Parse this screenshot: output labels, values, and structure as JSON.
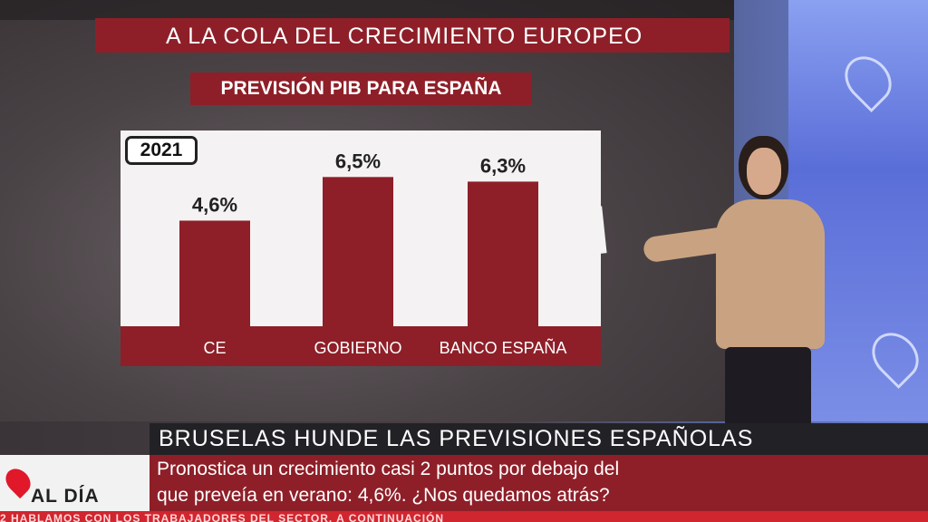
{
  "headline": "A LA COLA DEL CRECIMIENTO EUROPEO",
  "subheadline": "PREVISIÓN PIB PARA ESPAÑA",
  "chart_data": {
    "type": "bar",
    "year_label": "2021",
    "categories": [
      "CE",
      "GOBIERNO",
      "BANCO ESPAÑA"
    ],
    "values": [
      4.6,
      6.5,
      6.3
    ],
    "value_labels": [
      "4,6%",
      "6,5%",
      "6,3%"
    ],
    "bar_color": "#8e1f28",
    "ylim": [
      0,
      7.5
    ],
    "grid": false
  },
  "lower_third": {
    "title": "BRUSELAS HUNDE LAS PREVISIONES ESPAÑOLAS",
    "line1": "Pronostica un crecimiento casi 2 puntos por debajo del",
    "line2": "que preveía en verano: 4,6%. ¿Nos quedamos atrás?"
  },
  "logo": {
    "text": "AL DÍA"
  },
  "ticker": "2 HABLAMOS CON LOS TRABAJADORES DEL SECTOR, A CONTINUACIÓN",
  "colors": {
    "brand_red": "#8e1f28",
    "ticker_red": "#d0262f"
  }
}
